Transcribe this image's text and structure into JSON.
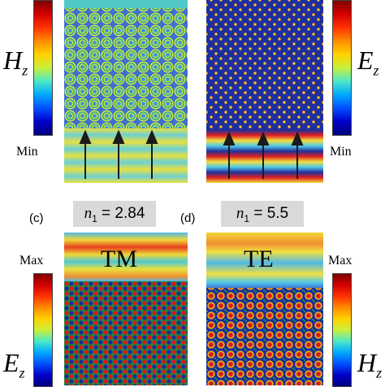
{
  "colorbars": {
    "top_left": {
      "field_symbol": "H",
      "field_sub": "z",
      "min_label": "Min"
    },
    "top_right": {
      "field_symbol": "E",
      "field_sub": "z",
      "min_label": "Min"
    },
    "bottom_left": {
      "max_label": "Max",
      "field_symbol": "E",
      "field_sub": "z"
    },
    "bottom_right": {
      "max_label": "Max",
      "field_symbol": "H",
      "field_sub": "z"
    }
  },
  "panel_c": {
    "label": "(c)",
    "n_symbol": "n",
    "n_sub": "1",
    "n_value": " = 2.84",
    "mode": "TM"
  },
  "panel_d": {
    "label": "(d)",
    "n_symbol": "n",
    "n_sub": "1",
    "n_value": " = 5.5",
    "mode": "TE"
  },
  "colors": {
    "red": "#d01010",
    "yellow": "#f2e030",
    "cyan": "#60d8e8",
    "blue": "#1a2c9c",
    "green": "#1e8a3a",
    "grey_box": "#d9d9d9"
  }
}
